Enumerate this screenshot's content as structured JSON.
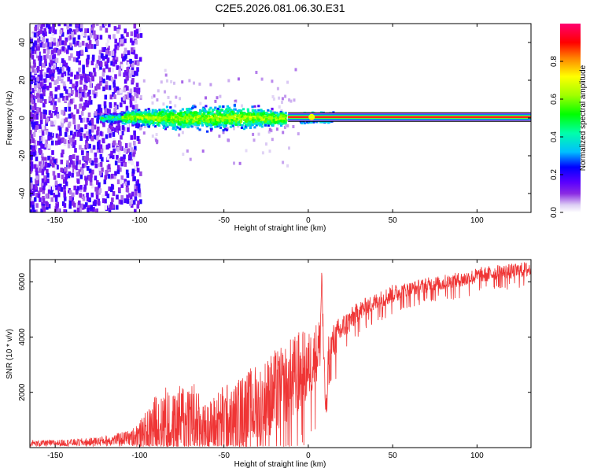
{
  "title": "C2E5.2026.081.06.30.E31",
  "chart_data": [
    {
      "type": "heatmap",
      "xlabel": "Height of straight line (km)",
      "ylabel": "Frequency (Hz)",
      "xlim": [
        -165,
        132
      ],
      "ylim": [
        -50,
        50
      ],
      "xticks": [
        -150,
        -100,
        -50,
        0,
        50,
        100
      ],
      "xtick_labels": [
        "-150",
        "-100",
        "-50",
        "0",
        "50",
        "100"
      ],
      "yticks": [
        -40,
        -20,
        0,
        20,
        40
      ],
      "ytick_labels": [
        "-40",
        "-20",
        "0",
        "20",
        "40"
      ],
      "colorbar": {
        "label": "Normalized spectral amplitude",
        "range": [
          0.0,
          1.0
        ],
        "ticks": [
          0.0,
          0.2,
          0.4,
          0.6,
          0.8
        ],
        "tick_labels": [
          "0.0",
          "0.2",
          "0.4",
          "0.6",
          "0.8"
        ],
        "colors": [
          "#ffffff",
          "#dccdf4",
          "#8a2be2",
          "#5a00ff",
          "#0000ff",
          "#00bfff",
          "#00ffaa",
          "#00ff00",
          "#a0ff00",
          "#ffff00",
          "#ff8000",
          "#ff0000",
          "#ff0070"
        ]
      },
      "regions": [
        {
          "name": "scattered noise",
          "x_range": [
            -165,
            -100
          ],
          "freq_range": [
            -50,
            50
          ],
          "amplitude": "0.1-0.3"
        },
        {
          "name": "signal band",
          "x_range": [
            -122,
            -15
          ],
          "freq_range": [
            -6,
            6
          ],
          "amplitude": "0.2-0.7"
        },
        {
          "name": "tone line",
          "x_range": [
            -10,
            132
          ],
          "freq_center": 0.5,
          "amplitude": "0.9-1.0"
        }
      ]
    },
    {
      "type": "line",
      "xlabel": "Height of straight line (km)",
      "ylabel": "SNR (10 * v/v)",
      "xlim": [
        -165,
        132
      ],
      "ylim": [
        0,
        6800
      ],
      "xticks": [
        -150,
        -100,
        -50,
        0,
        50,
        100
      ],
      "xtick_labels": [
        "-150",
        "-100",
        "-50",
        "0",
        "50",
        "100"
      ],
      "yticks": [
        2000,
        4000,
        6000
      ],
      "ytick_labels": [
        "2000",
        "4000",
        "6000"
      ],
      "series": [
        {
          "name": "SNR",
          "color": "#ef3535",
          "x": [
            -165,
            -150,
            -130,
            -115,
            -105,
            -100,
            -95,
            -90,
            -85,
            -80,
            -75,
            -70,
            -65,
            -60,
            -55,
            -50,
            -45,
            -40,
            -35,
            -30,
            -25,
            -20,
            -15,
            -10,
            -5,
            0,
            3,
            5,
            7,
            8,
            9,
            10,
            11,
            12,
            14,
            16,
            18,
            20,
            25,
            30,
            35,
            40,
            45,
            50,
            60,
            70,
            80,
            90,
            100,
            110,
            120,
            132
          ],
          "mean": [
            150,
            160,
            200,
            280,
            370,
            480,
            600,
            800,
            900,
            750,
            950,
            1100,
            800,
            650,
            800,
            950,
            1000,
            1200,
            1350,
            1500,
            1650,
            1850,
            2050,
            2300,
            2650,
            2900,
            3150,
            3400,
            3800,
            6400,
            3500,
            1700,
            1400,
            3400,
            3700,
            3900,
            4100,
            4300,
            4600,
            4900,
            5100,
            5250,
            5400,
            5550,
            5700,
            5850,
            5950,
            6050,
            6200,
            6300,
            6350,
            6450
          ],
          "noise": [
            120,
            120,
            150,
            200,
            300,
            500,
            800,
            1200,
            1400,
            1200,
            1400,
            1700,
            1200,
            900,
            1200,
            1400,
            1300,
            1400,
            1500,
            1600,
            1600,
            1700,
            1600,
            1700,
            1600,
            1300,
            1200,
            1200,
            1000,
            400,
            900,
            500,
            400,
            800,
            700,
            700,
            600,
            500,
            450,
            400,
            350,
            350,
            350,
            350,
            300,
            300,
            300,
            300,
            300,
            300,
            300,
            300
          ]
        }
      ]
    }
  ]
}
